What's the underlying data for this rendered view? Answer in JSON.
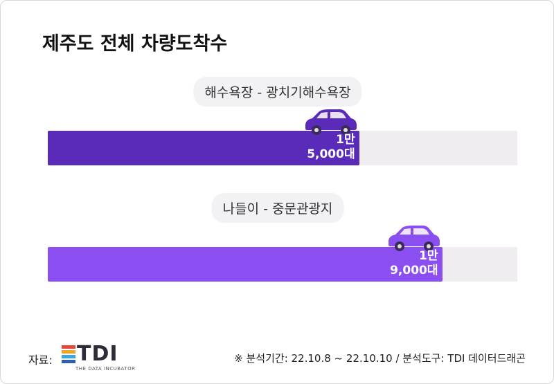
{
  "chart_data": {
    "type": "bar",
    "orientation": "horizontal",
    "title": "제주도 전체 차량도착수",
    "categories": [
      "해수욕장 - 광치기해수욕장",
      "나들이 - 중문관광지"
    ],
    "values": [
      15000,
      19000
    ],
    "value_labels": [
      "1만\n5,000대",
      "1만\n9,000대"
    ],
    "colors": [
      "#5a2bb8",
      "#8b4ef0"
    ],
    "track_color": "#efedf0"
  },
  "footer": {
    "source_label": "자료:",
    "logo": "TDI",
    "logo_sub": "THE DATA INCUBATOR",
    "note": "※ 분석기간: 22.10.8 ~ 22.10.10 / 분석도구: TDI 데이터드래곤"
  }
}
